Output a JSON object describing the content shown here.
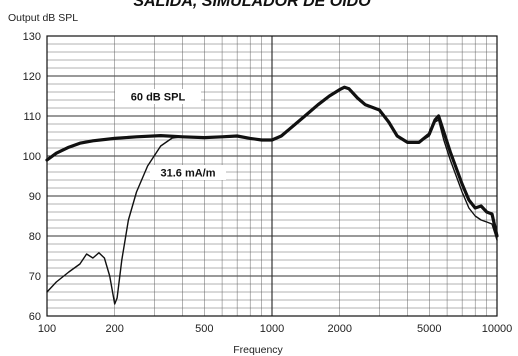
{
  "chart_data": {
    "type": "line",
    "title": "SALIDA, SIMULADOR DE OIDO",
    "ylabel": "Output dB SPL",
    "xlabel": "Frequency",
    "x_scale": "log",
    "xlim": [
      100,
      10000
    ],
    "ylim": [
      60,
      130
    ],
    "grid": true,
    "x_ticks": [
      100,
      200,
      500,
      1000,
      2000,
      5000,
      10000
    ],
    "x_tick_labels": [
      "100",
      "200",
      "500",
      "1000",
      "2000",
      "5000",
      "10000"
    ],
    "y_ticks": [
      60,
      70,
      80,
      90,
      100,
      110,
      120,
      130
    ],
    "y_tick_labels": [
      "60",
      "70",
      "80",
      "90",
      "100",
      "110",
      "120",
      "130"
    ],
    "annotations": [
      {
        "text": "60 dB SPL",
        "series": 0
      },
      {
        "text": "31.6 mA/m",
        "series": 1
      }
    ],
    "series": [
      {
        "color": "#111111",
        "points": [
          [
            100,
            99
          ],
          [
            110,
            100.7
          ],
          [
            125,
            102.2
          ],
          [
            140,
            103.2
          ],
          [
            160,
            103.8
          ],
          [
            200,
            104.4
          ],
          [
            250,
            104.8
          ],
          [
            320,
            105.1
          ],
          [
            400,
            104.8
          ],
          [
            500,
            104.6
          ],
          [
            600,
            104.8
          ],
          [
            700,
            105
          ],
          [
            800,
            104.4
          ],
          [
            900,
            104
          ],
          [
            1000,
            104
          ],
          [
            1100,
            105
          ],
          [
            1200,
            106.8
          ],
          [
            1400,
            110
          ],
          [
            1600,
            112.8
          ],
          [
            1800,
            115
          ],
          [
            2000,
            116.6
          ],
          [
            2100,
            117.2
          ],
          [
            2200,
            116.8
          ],
          [
            2400,
            114.5
          ],
          [
            2600,
            112.8
          ],
          [
            3000,
            111.5
          ],
          [
            3300,
            108.5
          ],
          [
            3600,
            105
          ],
          [
            4000,
            103.4
          ],
          [
            4500,
            103.4
          ],
          [
            5000,
            105.5
          ],
          [
            5300,
            109
          ],
          [
            5500,
            110
          ],
          [
            5800,
            106
          ],
          [
            6200,
            101
          ],
          [
            7000,
            93
          ],
          [
            7500,
            89
          ],
          [
            8000,
            87
          ],
          [
            8500,
            87.5
          ],
          [
            9000,
            86
          ],
          [
            9500,
            85.5
          ],
          [
            10000,
            80
          ]
        ]
      },
      {
        "color": "#111111",
        "points": [
          [
            100,
            66
          ],
          [
            110,
            68.5
          ],
          [
            125,
            71
          ],
          [
            140,
            73
          ],
          [
            150,
            75.5
          ],
          [
            160,
            74.5
          ],
          [
            170,
            75.8
          ],
          [
            180,
            74.5
          ],
          [
            190,
            70
          ],
          [
            200,
            63
          ],
          [
            205,
            64.5
          ],
          [
            215,
            74
          ],
          [
            230,
            84
          ],
          [
            250,
            91
          ],
          [
            280,
            97.5
          ],
          [
            320,
            102.5
          ],
          [
            360,
            104.5
          ],
          [
            400,
            104.8
          ],
          [
            500,
            104.6
          ],
          [
            600,
            104.8
          ],
          [
            700,
            105
          ],
          [
            800,
            104.4
          ],
          [
            900,
            104
          ],
          [
            1000,
            104
          ],
          [
            1100,
            105
          ],
          [
            1200,
            106.8
          ],
          [
            1400,
            110
          ],
          [
            1600,
            112.8
          ],
          [
            1800,
            115
          ],
          [
            2000,
            116.6
          ],
          [
            2100,
            117.2
          ],
          [
            2200,
            116.8
          ],
          [
            2400,
            114.5
          ],
          [
            2600,
            112.8
          ],
          [
            3000,
            111.5
          ],
          [
            3300,
            108.5
          ],
          [
            3600,
            105
          ],
          [
            4000,
            103.4
          ],
          [
            4500,
            103.4
          ],
          [
            5000,
            105
          ],
          [
            5300,
            108.5
          ],
          [
            5500,
            109
          ],
          [
            5800,
            104
          ],
          [
            6200,
            99
          ],
          [
            7000,
            91
          ],
          [
            7500,
            87
          ],
          [
            8000,
            85
          ],
          [
            8500,
            84
          ],
          [
            9000,
            83.5
          ],
          [
            9500,
            83
          ],
          [
            10000,
            79
          ]
        ]
      }
    ]
  }
}
